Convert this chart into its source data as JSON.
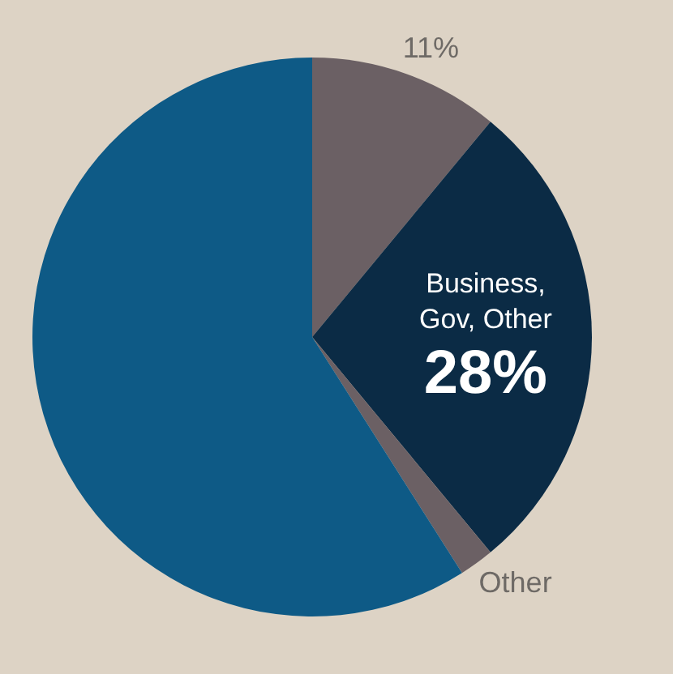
{
  "chart_data": {
    "type": "pie",
    "categories": [
      null,
      "Business, Gov, Other",
      "Other",
      null
    ],
    "values": [
      11,
      28,
      2,
      59
    ],
    "colors": [
      "#6b6064",
      "#0b2b45",
      "#6b6064",
      "#0e5a86"
    ],
    "value_labels": [
      "11%",
      "28%",
      null,
      null
    ],
    "legend": false
  }
}
